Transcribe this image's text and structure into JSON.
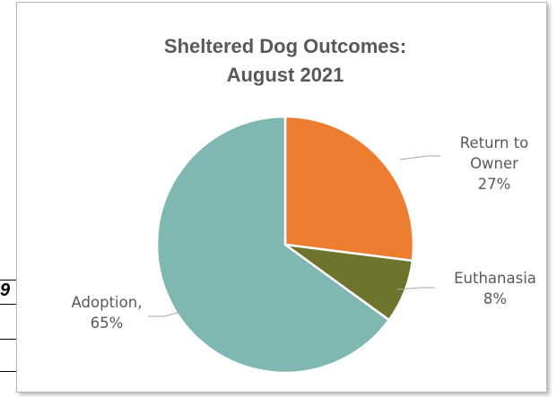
{
  "chart_data": {
    "type": "pie",
    "title": [
      "Sheltered Dog Outcomes:",
      "August 2021"
    ],
    "slices": [
      {
        "name": "Return to Owner",
        "value": 27,
        "label_lines": [
          "Return to",
          "Owner",
          "27%"
        ],
        "color": "#ed7d31"
      },
      {
        "name": "Euthanasia",
        "value": 8,
        "label_lines": [
          "Euthanasia",
          "8%"
        ],
        "color": "#6f742c"
      },
      {
        "name": "Adoption",
        "value": 65,
        "label_lines": [
          "Adoption,",
          "65%"
        ],
        "color": "#7fb8b2"
      }
    ],
    "start_angle_deg": 0,
    "direction": "clockwise"
  },
  "background_sheet": {
    "partial_cell_text": "9"
  }
}
